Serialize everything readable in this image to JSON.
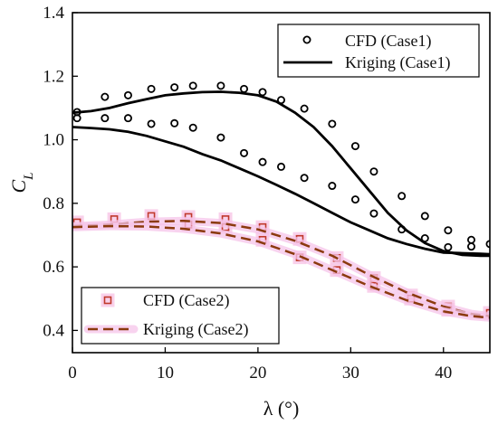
{
  "chart_data": {
    "type": "scatter",
    "xlabel": "λ (°)",
    "ylabel": "C",
    "ylabel_subscript": "L",
    "xlim": [
      0,
      45
    ],
    "ylim": [
      0.33,
      1.4
    ],
    "xticks": [
      0,
      10,
      20,
      30,
      40
    ],
    "yticks": [
      0.4,
      0.6,
      0.8,
      1.0,
      1.2,
      1.4
    ],
    "ytick_labels": [
      "0.4",
      "0.6",
      "0.8",
      "1.0",
      "1.2",
      "1.4"
    ],
    "grid": false,
    "legends": [
      {
        "placement": "top-right",
        "entries": [
          "CFD (Case1)",
          "Kriging (Case1)"
        ]
      },
      {
        "placement": "bottom-left",
        "entries": [
          "CFD (Case2)",
          "Kriging (Case2)"
        ]
      }
    ],
    "series": [
      {
        "name": "CFD (Case1)",
        "kind": "marker-circle",
        "color": "#000000",
        "points": [
          [
            0.5,
            1.087
          ],
          [
            0.5,
            1.068
          ],
          [
            3.5,
            1.135
          ],
          [
            3.5,
            1.068
          ],
          [
            6,
            1.14
          ],
          [
            6,
            1.068
          ],
          [
            8.5,
            1.16
          ],
          [
            8.5,
            1.05
          ],
          [
            11,
            1.165
          ],
          [
            11,
            1.052
          ],
          [
            13,
            1.17
          ],
          [
            13,
            1.038
          ],
          [
            16,
            1.17
          ],
          [
            16,
            1.007
          ],
          [
            18.5,
            1.16
          ],
          [
            18.5,
            0.958
          ],
          [
            20.5,
            1.15
          ],
          [
            20.5,
            0.93
          ],
          [
            22.5,
            1.125
          ],
          [
            22.5,
            0.915
          ],
          [
            25,
            1.098
          ],
          [
            25,
            0.88
          ],
          [
            28,
            1.05
          ],
          [
            28,
            0.855
          ],
          [
            30.5,
            0.98
          ],
          [
            30.5,
            0.812
          ],
          [
            32.5,
            0.9
          ],
          [
            32.5,
            0.768
          ],
          [
            35.5,
            0.823
          ],
          [
            35.5,
            0.718
          ],
          [
            38,
            0.76
          ],
          [
            38,
            0.69
          ],
          [
            40.5,
            0.715
          ],
          [
            40.5,
            0.662
          ],
          [
            43,
            0.685
          ],
          [
            43,
            0.664
          ],
          [
            45,
            0.672
          ]
        ]
      },
      {
        "name": "Kriging (Case1)",
        "kind": "line-solid",
        "color": "#000000",
        "branches": [
          [
            [
              0,
              1.085
            ],
            [
              2,
              1.09
            ],
            [
              4,
              1.1
            ],
            [
              6,
              1.115
            ],
            [
              8,
              1.128
            ],
            [
              10,
              1.14
            ],
            [
              12,
              1.146
            ],
            [
              14,
              1.15
            ],
            [
              16,
              1.151
            ],
            [
              18,
              1.148
            ],
            [
              20,
              1.14
            ],
            [
              22,
              1.12
            ],
            [
              24,
              1.085
            ],
            [
              26,
              1.04
            ],
            [
              28,
              0.98
            ],
            [
              30,
              0.91
            ],
            [
              32,
              0.84
            ],
            [
              34,
              0.77
            ],
            [
              36,
              0.715
            ],
            [
              38,
              0.675
            ],
            [
              40,
              0.65
            ],
            [
              42,
              0.638
            ],
            [
              44,
              0.635
            ],
            [
              45,
              0.635
            ]
          ],
          [
            [
              0,
              1.04
            ],
            [
              2,
              1.037
            ],
            [
              4,
              1.033
            ],
            [
              6,
              1.025
            ],
            [
              8,
              1.012
            ],
            [
              10,
              0.995
            ],
            [
              12,
              0.978
            ],
            [
              14,
              0.955
            ],
            [
              16,
              0.935
            ],
            [
              18,
              0.91
            ],
            [
              20,
              0.885
            ],
            [
              22,
              0.858
            ],
            [
              24,
              0.83
            ],
            [
              26,
              0.8
            ],
            [
              28,
              0.77
            ],
            [
              30,
              0.74
            ],
            [
              32,
              0.715
            ],
            [
              34,
              0.69
            ],
            [
              36,
              0.672
            ],
            [
              38,
              0.657
            ],
            [
              40,
              0.645
            ],
            [
              42,
              0.643
            ],
            [
              44,
              0.641
            ],
            [
              45,
              0.64
            ]
          ]
        ]
      },
      {
        "name": "CFD (Case2)",
        "kind": "marker-square",
        "color": "#c0392b",
        "points": [
          [
            0.5,
            0.74
          ],
          [
            4.5,
            0.75
          ],
          [
            8.5,
            0.76
          ],
          [
            12.5,
            0.757
          ],
          [
            12.5,
            0.733
          ],
          [
            16.5,
            0.75
          ],
          [
            16.5,
            0.725
          ],
          [
            20.5,
            0.725
          ],
          [
            20.5,
            0.685
          ],
          [
            24.5,
            0.688
          ],
          [
            24.5,
            0.63
          ],
          [
            28.5,
            0.628
          ],
          [
            28.5,
            0.59
          ],
          [
            32.5,
            0.565
          ],
          [
            32.5,
            0.54
          ],
          [
            36.5,
            0.51
          ],
          [
            36.5,
            0.5
          ],
          [
            40.5,
            0.475
          ],
          [
            40.5,
            0.465
          ],
          [
            45,
            0.455
          ]
        ]
      },
      {
        "name": "Kriging (Case2)",
        "kind": "line-dashed",
        "color": "#8b3a0e",
        "branches": [
          [
            [
              0,
              0.728
            ],
            [
              4,
              0.733
            ],
            [
              8,
              0.742
            ],
            [
              12,
              0.745
            ],
            [
              16,
              0.738
            ],
            [
              20,
              0.718
            ],
            [
              24,
              0.682
            ],
            [
              28,
              0.635
            ],
            [
              32,
              0.575
            ],
            [
              36,
              0.52
            ],
            [
              40,
              0.475
            ],
            [
              43,
              0.452
            ],
            [
              45,
              0.445
            ]
          ],
          [
            [
              0,
              0.725
            ],
            [
              4,
              0.728
            ],
            [
              8,
              0.727
            ],
            [
              12,
              0.72
            ],
            [
              16,
              0.705
            ],
            [
              20,
              0.68
            ],
            [
              24,
              0.64
            ],
            [
              28,
              0.59
            ],
            [
              32,
              0.54
            ],
            [
              36,
              0.495
            ],
            [
              40,
              0.46
            ],
            [
              43,
              0.445
            ],
            [
              45,
              0.44
            ]
          ]
        ]
      }
    ]
  }
}
